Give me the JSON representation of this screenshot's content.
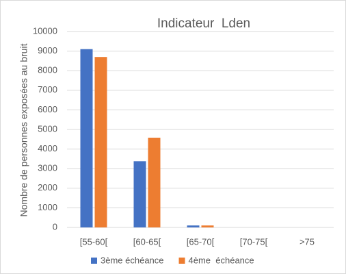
{
  "chart_data": {
    "type": "bar",
    "title": "Indicateur  Lden",
    "y_label": "Nombre de personnes exposées au bruit",
    "categories": [
      "[55-60[",
      "[60-65[",
      "[65-70[",
      "[70-75[",
      ">75"
    ],
    "series": [
      {
        "name": "3ème échéance",
        "color": "#4472c4",
        "values": [
          9100,
          3380,
          100,
          0,
          0
        ]
      },
      {
        "name": "4ème  échéance",
        "color": "#ed7d31",
        "values": [
          8700,
          4580,
          100,
          0,
          0
        ]
      }
    ],
    "ylim": [
      0,
      10000
    ],
    "yticks": [
      0,
      1000,
      2000,
      3000,
      4000,
      5000,
      6000,
      7000,
      8000,
      9000,
      10000
    ],
    "grid": true,
    "legend": "bottom"
  }
}
